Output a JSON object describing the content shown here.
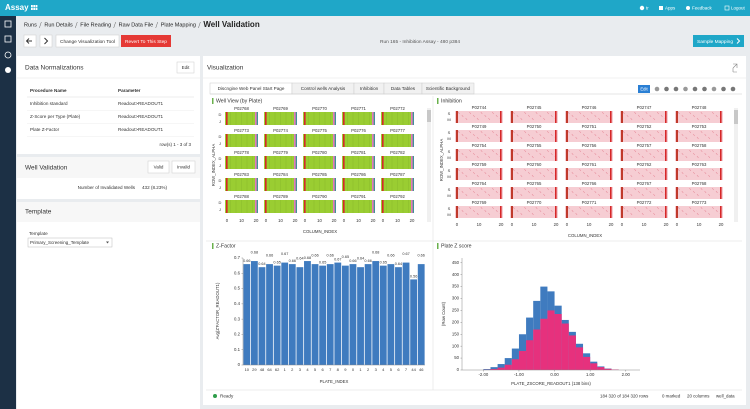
{
  "header": {
    "logo": "Assay",
    "user": "tr",
    "apps": "Apps",
    "feedback": "Feedback",
    "logout": "Logout"
  },
  "breadcrumb": [
    "Runs",
    "Run Details",
    "File Reading",
    "Raw Data File",
    "Plate Mapping",
    "Well Validation"
  ],
  "toolbar": {
    "change_tool": "Change Visualization Tool",
    "revert": "Revert To This Step",
    "run": "Run 165 - Inhibition Assay - 480 p384",
    "next": "Sample Mapping"
  },
  "normalizations": {
    "title": "Data Normalizations",
    "edit": "Edit",
    "columns": [
      "Procedure Name",
      "Parameter"
    ],
    "rows": [
      [
        "Inhibition standard",
        "Readout>READOUT1"
      ],
      [
        "Z-Score per Type (Plate)",
        "Readout>READOUT1"
      ],
      [
        "Plate Z-Factor",
        "Readout>READOUT1"
      ]
    ],
    "pager": "row(s) 1 - 3 of 3"
  },
  "well_validation": {
    "title": "Well Validation",
    "valid": "Valid",
    "invalid": "Invalid",
    "label": "Number of Invalidated Wells",
    "value": "432 (8.23%)"
  },
  "template": {
    "title": "Template",
    "label": "Template",
    "selected": "Primary_Screening_Template"
  },
  "visualization": {
    "title": "Visualization",
    "edit": "Edit",
    "tabs": [
      "Discngine Web Panel Start Page",
      "Control wells Analysis",
      "Inhibition",
      "Data Tables",
      "Scientific Background"
    ],
    "status": {
      "state": "Ready",
      "rows": "184 320 of 184 320 rows",
      "marked": "0 marked",
      "columns": "20 columns",
      "table": "well_data"
    }
  },
  "well_view": {
    "title": "Well View (by Plate)",
    "x_label": "COLUMN_INDEX",
    "y_label": "ROW_INDEX_ALPHA",
    "row_labels": [
      "D",
      "J"
    ],
    "x_ticks": [
      "0",
      "10",
      "20"
    ],
    "plates": [
      "P02768",
      "P02769",
      "P02770",
      "P02771",
      "P02772",
      "P02773",
      "P02774",
      "P02775",
      "P02776",
      "P02777",
      "P02778",
      "P02779",
      "P02780",
      "P02781",
      "P02782",
      "P02783",
      "P02784",
      "P02785",
      "P02786",
      "P02787",
      "P02788",
      "P02789",
      "P02790",
      "P02791",
      "P02792"
    ]
  },
  "inhibition_view": {
    "title": "Inhibition",
    "x_label": "COLUMN_INDEX",
    "y_label": "ROW_INDEX_ALPHA",
    "row_labels": [
      "S",
      "M"
    ],
    "x_ticks": [
      "0",
      "10",
      "20"
    ],
    "plates": [
      "P02744",
      "P02745",
      "P02746",
      "P02747",
      "P02748",
      "P02749",
      "P02750",
      "P02751",
      "P02752",
      "P02753",
      "P02754",
      "P02755",
      "P02756",
      "P02757",
      "P02758",
      "P02759",
      "P02760",
      "P02761",
      "P02762",
      "P02763",
      "P02764",
      "P02765",
      "P02766",
      "P02767",
      "P02768",
      "P02769",
      "P02770",
      "P02771",
      "P02772",
      "P02773"
    ]
  },
  "chart_data": [
    {
      "type": "bar",
      "title": "Z-Factor",
      "x_label": "PLATE_INDEX",
      "y_label": "Avg(Z'FACTOR_READOUT1)",
      "categories": [
        "10",
        "29",
        "48",
        "64",
        "62",
        "1",
        "2",
        "3",
        "4",
        "5",
        "6",
        "7",
        "8",
        "9",
        "0",
        "1",
        "2",
        "3",
        "4",
        "5",
        "6",
        "7",
        "44",
        "46"
      ],
      "values": [
        0.66,
        0.68,
        0.64,
        0.66,
        0.65,
        0.67,
        0.66,
        0.64,
        0.68,
        0.66,
        0.65,
        0.66,
        0.67,
        0.65,
        0.66,
        0.64,
        0.66,
        0.68,
        0.65,
        0.66,
        0.64,
        0.67,
        0.56,
        0.66
      ],
      "color": "#3f7bbf",
      "ylim": [
        0,
        0.7
      ],
      "yticks": [
        0,
        0.1,
        0.2,
        0.3,
        0.4,
        0.5,
        0.6,
        0.7
      ]
    },
    {
      "type": "histogram",
      "title": "Plate Z score",
      "x_label": "PLATE_ZSCORE_READOUT1 (138 bins)",
      "y_label": "(Row Count)",
      "bins": [
        -2.2,
        -2,
        -1.8,
        -1.6,
        -1.4,
        -1.2,
        -1,
        -0.8,
        -0.6,
        -0.4,
        -0.2,
        0,
        0.2,
        0.4,
        0.6,
        0.8,
        1,
        1.2,
        1.4,
        1.6,
        1.8,
        2,
        2.2
      ],
      "series": [
        {
          "color": "#3f7bbf",
          "values": [
            0,
            4,
            12,
            25,
            50,
            90,
            150,
            220,
            290,
            350,
            330,
            270,
            210,
            160,
            110,
            70,
            35,
            15,
            6,
            2,
            0,
            0
          ]
        },
        {
          "color": "#e6317d",
          "values": [
            0,
            1,
            4,
            10,
            22,
            45,
            80,
            125,
            170,
            215,
            250,
            235,
            195,
            145,
            95,
            55,
            28,
            12,
            5,
            2,
            0,
            0
          ]
        }
      ],
      "xlim": [
        -2.6,
        2.4
      ],
      "xticks": [
        {
          "value": -2,
          "label": "-2.00"
        },
        {
          "value": -1,
          "label": "-1.00"
        },
        {
          "value": 0,
          "label": "0.00"
        },
        {
          "value": 1,
          "label": "1.00"
        },
        {
          "value": 2,
          "label": "2.00"
        }
      ],
      "ylim": [
        0,
        470
      ],
      "yticks": [
        0,
        50,
        100,
        150,
        200,
        250,
        300,
        350,
        400,
        450
      ]
    }
  ]
}
